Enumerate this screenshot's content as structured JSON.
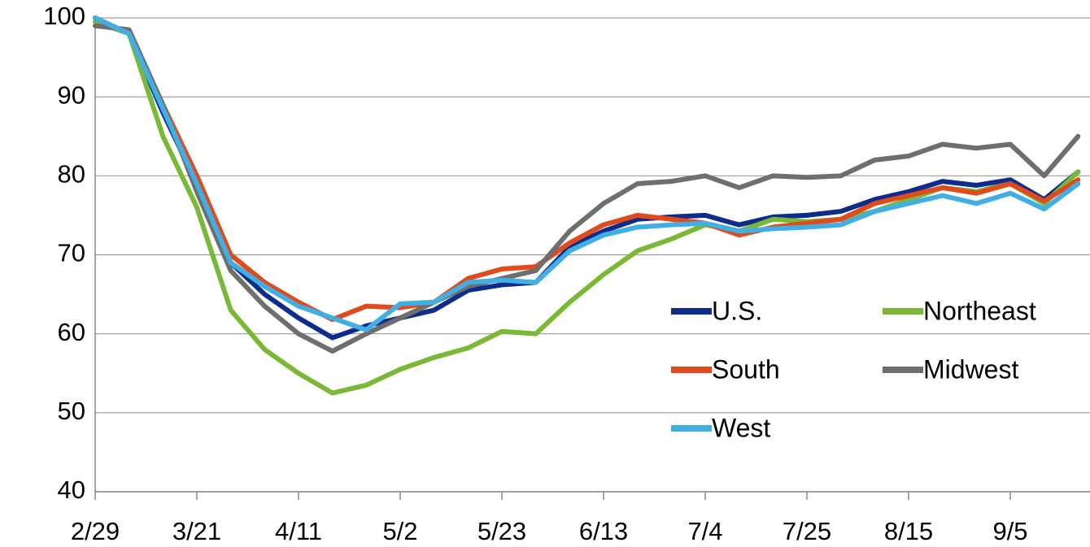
{
  "chart_data": {
    "type": "line",
    "categories": [
      "2/29",
      null,
      null,
      "3/21",
      null,
      null,
      "4/11",
      null,
      null,
      "5/2",
      null,
      null,
      "5/23",
      null,
      null,
      "6/13",
      null,
      null,
      "7/4",
      null,
      null,
      "7/25",
      null,
      null,
      "8/15",
      null,
      null,
      "9/5",
      null,
      null
    ],
    "series": [
      {
        "name": "U.S.",
        "color": "#0d2c8c",
        "values": [
          100,
          98,
          88,
          79,
          69,
          65,
          62,
          59.5,
          61,
          62,
          63,
          65.5,
          66.2,
          66.5,
          71,
          73,
          74.5,
          74.8,
          75,
          73.8,
          74.8,
          75,
          75.5,
          77,
          78,
          79.3,
          78.8,
          79.5,
          77,
          80.5
        ]
      },
      {
        "name": "Northeast",
        "color": "#7ab935",
        "values": [
          99.5,
          98,
          85,
          76,
          63,
          58,
          55,
          52.5,
          53.5,
          55.5,
          57,
          58.2,
          60.3,
          60,
          64,
          67.5,
          70.5,
          72,
          73.8,
          73,
          74.5,
          74.2,
          74.5,
          75.5,
          77,
          78.5,
          78,
          79,
          76.5,
          80.5
        ]
      },
      {
        "name": "South",
        "color": "#e04a1c",
        "values": [
          100,
          98,
          89,
          80,
          70,
          66.5,
          64,
          61.8,
          63.5,
          63.3,
          64,
          67,
          68.2,
          68.5,
          71.5,
          73.8,
          75,
          74.5,
          74,
          72.5,
          73.5,
          74,
          74.5,
          76.5,
          77.5,
          78.5,
          77.8,
          79,
          76.8,
          79.5
        ]
      },
      {
        "name": "Midwest",
        "color": "#6e6e6e",
        "values": [
          99,
          98.5,
          89,
          78,
          68,
          63.5,
          60,
          57.8,
          60,
          62,
          64,
          66,
          67,
          68,
          73,
          76.5,
          79,
          79.3,
          80,
          78.5,
          80,
          79.8,
          80,
          82,
          82.5,
          84,
          83.5,
          84,
          80,
          85
        ]
      },
      {
        "name": "West",
        "color": "#41afe3",
        "values": [
          100,
          98,
          88.5,
          79,
          69,
          66,
          63.5,
          62,
          60.5,
          63.8,
          64,
          66.5,
          66.8,
          66.5,
          70.5,
          72.5,
          73.5,
          73.8,
          74,
          73,
          73.3,
          73.5,
          73.8,
          75.5,
          76.5,
          77.5,
          76.5,
          77.8,
          75.8,
          79
        ]
      }
    ],
    "ylim": [
      40,
      100
    ],
    "yticks": [
      40,
      50,
      60,
      70,
      80,
      90,
      100
    ],
    "grid": true,
    "legend": "lower right"
  }
}
